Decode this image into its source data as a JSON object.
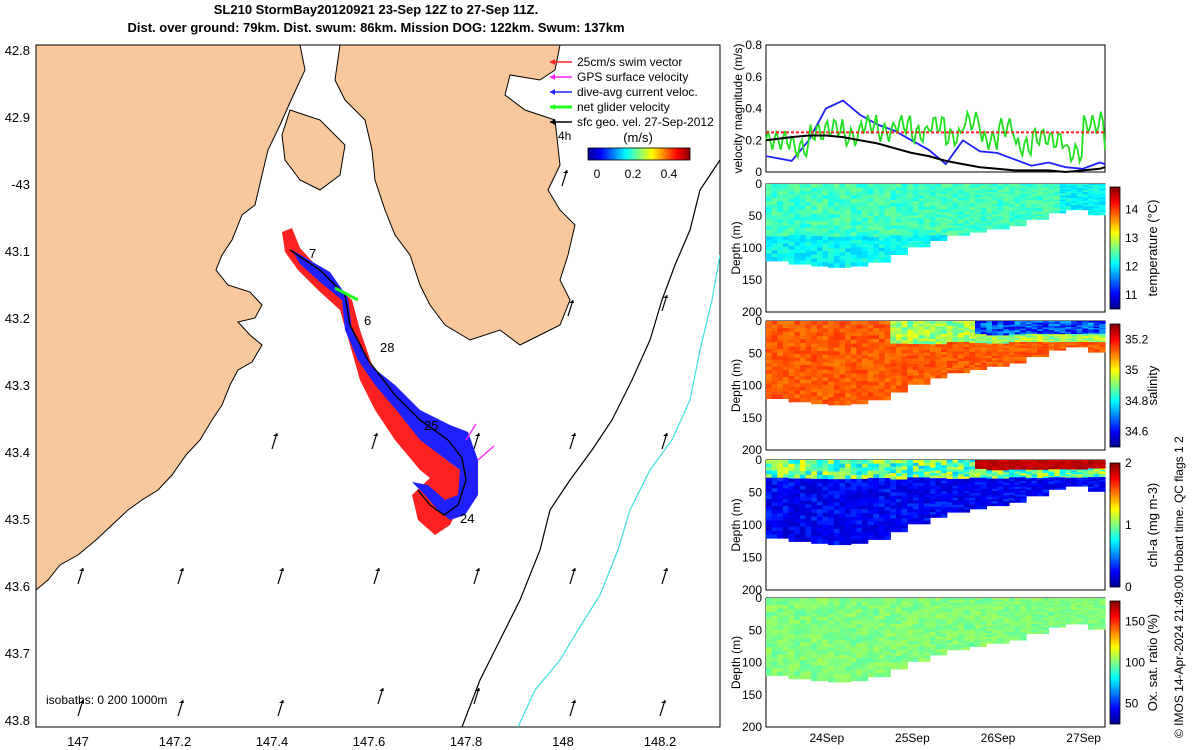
{
  "title": {
    "line1": "SL210 StormBay20120921 23-Sep 12Z to 27-Sep 11Z.",
    "line2": "Dist. over ground: 79km. Dist. swum: 86km. Mission DOG: 122km. Swum: 137km"
  },
  "credit": "© IMOS 14-Apr-2024 21:49:00 Hobart time. QC flags 1  2",
  "map": {
    "lat_ticks": [
      "42.8",
      "42.9",
      "-43",
      "43.1",
      "43.2",
      "43.3",
      "43.4",
      "43.5",
      "43.6",
      "43.7",
      "43.8"
    ],
    "lon_ticks": [
      "147",
      "147.2",
      "147.4",
      "147.6",
      "147.8",
      "148",
      "148.2"
    ],
    "legend": [
      {
        "label": "25cm/s swim vector",
        "color": "#ff2020"
      },
      {
        "label": "GPS surface velocity",
        "color": "#ff20ff"
      },
      {
        "label": "dive-avg current veloc.",
        "color": "#2020ff"
      },
      {
        "label": "net glider velocity",
        "color": "#20ff20"
      },
      {
        "label": "sfc geo. vel. 27-Sep-2012",
        "color": "#000000"
      }
    ],
    "legend_extra": "4h",
    "colorbar": {
      "title": "(m/s)",
      "ticks": [
        "0",
        "0.2",
        "0.4"
      ]
    },
    "track_day_labels": [
      "7",
      "6",
      "28",
      "25",
      "24"
    ],
    "isobath_label": "isobaths: 0   200  1000m",
    "colors": {
      "land": "#f8c89c",
      "track_swim": "#ff2020",
      "track_current": "#2020ff",
      "net": "#20ff20",
      "isobath_200": "#000000",
      "isobath_1000": "#40e0e0"
    }
  },
  "chart_data": [
    {
      "type": "line",
      "ylabel": "velocity magnitude (m/s)",
      "ylim": [
        0,
        0.8
      ],
      "yticks": [
        "0",
        "0.2",
        "0.4",
        "0.6",
        "0.8"
      ],
      "x": [
        23.5,
        23.8,
        24.0,
        24.2,
        24.4,
        24.6,
        24.8,
        25.0,
        25.2,
        25.4,
        25.6,
        25.8,
        26.0,
        26.2,
        26.4,
        26.6,
        26.8,
        27.0,
        27.2,
        27.4,
        27.46
      ],
      "series": [
        {
          "color": "#2020ff",
          "values": [
            0.1,
            0.07,
            0.2,
            0.4,
            0.45,
            0.36,
            0.3,
            0.26,
            0.2,
            0.14,
            0.05,
            0.2,
            0.13,
            0.12,
            0.08,
            0.04,
            0.06,
            0.03,
            0.02,
            0.06,
            0.05
          ]
        },
        {
          "color": "#20e020",
          "values": [
            0.2,
            0.15,
            0.25,
            0.28,
            0.22,
            0.3,
            0.25,
            0.3,
            0.24,
            0.3,
            0.22,
            0.32,
            0.2,
            0.28,
            0.16,
            0.22,
            0.2,
            0.12,
            0.3,
            0.32,
            0.3
          ]
        },
        {
          "color": "#000000",
          "values": [
            0.2,
            0.22,
            0.23,
            0.23,
            0.22,
            0.2,
            0.18,
            0.15,
            0.12,
            0.1,
            0.07,
            0.05,
            0.03,
            0.02,
            0.01,
            0.01,
            0.01,
            0.0,
            0.01,
            0.02,
            0.03
          ]
        },
        {
          "color": "#ff2020",
          "dashed": true,
          "values": [
            0.25,
            0.25,
            0.25,
            0.25,
            0.25,
            0.25,
            0.25,
            0.25,
            0.25,
            0.25,
            0.25,
            0.25,
            0.25,
            0.25,
            0.25,
            0.25,
            0.25,
            0.25,
            0.25,
            0.25,
            0.25
          ]
        }
      ]
    },
    {
      "type": "heatmap",
      "ylabel": "Depth (m)",
      "ylim": [
        200,
        0
      ],
      "yticks": [
        "0",
        "50",
        "100",
        "150",
        "200"
      ],
      "colorbar_label": "temperature (°C)",
      "colorbar_ticks": [
        "11",
        "12",
        "13",
        "14"
      ],
      "clim": [
        10.5,
        14.8
      ]
    },
    {
      "type": "heatmap",
      "ylabel": "Depth (m)",
      "ylim": [
        200,
        0
      ],
      "yticks": [
        "0",
        "50",
        "100",
        "150",
        "200"
      ],
      "colorbar_label": "salinity",
      "colorbar_ticks": [
        "34.6",
        "34.8",
        "35",
        "35.2"
      ],
      "clim": [
        34.5,
        35.3
      ]
    },
    {
      "type": "heatmap",
      "ylabel": "Depth (m)",
      "ylim": [
        200,
        0
      ],
      "yticks": [
        "0",
        "50",
        "100",
        "150",
        "200"
      ],
      "colorbar_label": "chl-a (mg m-3)",
      "colorbar_ticks": [
        "0",
        "1",
        "2"
      ],
      "clim": [
        0,
        2
      ]
    },
    {
      "type": "heatmap",
      "ylabel": "Depth (m)",
      "ylim": [
        200,
        0
      ],
      "yticks": [
        "0",
        "50",
        "100",
        "150",
        "200"
      ],
      "colorbar_label": "Ox. sat. ratio (%)",
      "colorbar_ticks": [
        "50",
        "100",
        "150"
      ],
      "clim": [
        25,
        175
      ],
      "xticks": [
        "24Sep",
        "25Sep",
        "26Sep",
        "27Sep"
      ]
    }
  ]
}
